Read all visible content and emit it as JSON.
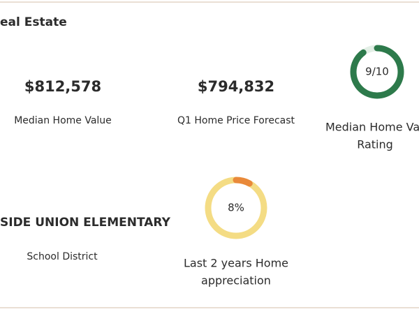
{
  "header": {
    "title": "eal Estate"
  },
  "stats": [
    {
      "value": "$812,578",
      "label": "Median Home Value"
    },
    {
      "value": "$794,832",
      "label": "Q1 Home Price Forecast"
    },
    {
      "value": "SIDE UNION ELEMENTARY",
      "label": "School District"
    }
  ],
  "gauges": [
    {
      "label": "9/10",
      "value": 9,
      "max": 10,
      "color": "#2d7a4b",
      "track": "#e3efe6",
      "caption": [
        "Median Home Va",
        "Rating"
      ]
    },
    {
      "label": "8%",
      "value": 8,
      "max": 100,
      "color": "#e9893a",
      "track": "#f4dc84",
      "caption": [
        "Last 2 years Home",
        "appreciation"
      ]
    }
  ]
}
